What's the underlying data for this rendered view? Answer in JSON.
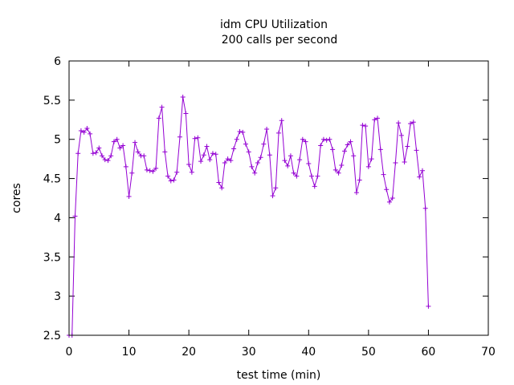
{
  "chart_data": {
    "type": "line",
    "title": "idm CPU Utilization",
    "subtitle": "200 calls per second",
    "xlabel": "test time (min)",
    "ylabel": "cores",
    "xlim": [
      0,
      70
    ],
    "ylim": [
      2.5,
      6
    ],
    "x_ticks": [
      "0",
      "10",
      "20",
      "30",
      "40",
      "50",
      "60",
      "70"
    ],
    "y_ticks": [
      "2.5",
      "3",
      "3.5",
      "4",
      "4.5",
      "5",
      "5.5",
      "6"
    ],
    "grid": false,
    "series_color": "#9400d3",
    "series": [
      {
        "name": "idm CPU",
        "points": [
          [
            0.0,
            2.5
          ],
          [
            0.5,
            2.5
          ],
          [
            1.0,
            4.02
          ],
          [
            1.5,
            4.82
          ],
          [
            2.0,
            5.11
          ],
          [
            2.5,
            5.09
          ],
          [
            3.0,
            5.14
          ],
          [
            3.5,
            5.07
          ],
          [
            4.0,
            4.82
          ],
          [
            4.5,
            4.83
          ],
          [
            5.0,
            4.89
          ],
          [
            5.5,
            4.79
          ],
          [
            6.0,
            4.74
          ],
          [
            6.5,
            4.73
          ],
          [
            7.0,
            4.79
          ],
          [
            7.5,
            4.97
          ],
          [
            8.0,
            5.0
          ],
          [
            8.5,
            4.89
          ],
          [
            9.0,
            4.92
          ],
          [
            9.5,
            4.65
          ],
          [
            10.0,
            4.27
          ],
          [
            10.5,
            4.57
          ],
          [
            11.0,
            4.96
          ],
          [
            11.5,
            4.84
          ],
          [
            12.0,
            4.79
          ],
          [
            12.5,
            4.79
          ],
          [
            13.0,
            4.61
          ],
          [
            13.5,
            4.6
          ],
          [
            14.0,
            4.59
          ],
          [
            14.5,
            4.63
          ],
          [
            15.0,
            5.27
          ],
          [
            15.5,
            5.41
          ],
          [
            16.0,
            4.84
          ],
          [
            16.5,
            4.53
          ],
          [
            17.0,
            4.47
          ],
          [
            17.5,
            4.48
          ],
          [
            18.0,
            4.58
          ],
          [
            18.5,
            5.03
          ],
          [
            19.0,
            5.54
          ],
          [
            19.5,
            5.33
          ],
          [
            20.0,
            4.68
          ],
          [
            20.5,
            4.58
          ],
          [
            21.0,
            5.01
          ],
          [
            21.5,
            5.02
          ],
          [
            22.0,
            4.72
          ],
          [
            22.5,
            4.8
          ],
          [
            23.0,
            4.91
          ],
          [
            23.5,
            4.74
          ],
          [
            24.0,
            4.82
          ],
          [
            24.5,
            4.81
          ],
          [
            25.0,
            4.45
          ],
          [
            25.5,
            4.38
          ],
          [
            26.0,
            4.7
          ],
          [
            26.5,
            4.75
          ],
          [
            27.0,
            4.73
          ],
          [
            27.5,
            4.88
          ],
          [
            28.0,
            5.0
          ],
          [
            28.5,
            5.1
          ],
          [
            29.0,
            5.09
          ],
          [
            29.5,
            4.94
          ],
          [
            30.0,
            4.84
          ],
          [
            30.5,
            4.65
          ],
          [
            31.0,
            4.57
          ],
          [
            31.5,
            4.7
          ],
          [
            32.0,
            4.77
          ],
          [
            32.5,
            4.94
          ],
          [
            33.0,
            5.13
          ],
          [
            33.5,
            4.8
          ],
          [
            34.0,
            4.28
          ],
          [
            34.5,
            4.38
          ],
          [
            35.0,
            5.08
          ],
          [
            35.5,
            5.24
          ],
          [
            36.0,
            4.73
          ],
          [
            36.5,
            4.66
          ],
          [
            37.0,
            4.79
          ],
          [
            37.5,
            4.57
          ],
          [
            38.0,
            4.53
          ],
          [
            38.5,
            4.74
          ],
          [
            39.0,
            5.0
          ],
          [
            39.5,
            4.97
          ],
          [
            40.0,
            4.69
          ],
          [
            40.5,
            4.53
          ],
          [
            41.0,
            4.4
          ],
          [
            41.5,
            4.53
          ],
          [
            42.0,
            4.92
          ],
          [
            42.5,
            5.0
          ],
          [
            43.0,
            4.99
          ],
          [
            43.5,
            5.0
          ],
          [
            44.0,
            4.87
          ],
          [
            44.5,
            4.61
          ],
          [
            45.0,
            4.57
          ],
          [
            45.5,
            4.67
          ],
          [
            46.0,
            4.85
          ],
          [
            46.5,
            4.93
          ],
          [
            47.0,
            4.97
          ],
          [
            47.5,
            4.79
          ],
          [
            48.0,
            4.32
          ],
          [
            48.5,
            4.48
          ],
          [
            49.0,
            5.18
          ],
          [
            49.5,
            5.17
          ],
          [
            50.0,
            4.65
          ],
          [
            50.5,
            4.75
          ],
          [
            51.0,
            5.25
          ],
          [
            51.5,
            5.27
          ],
          [
            52.0,
            4.87
          ],
          [
            52.5,
            4.55
          ],
          [
            53.0,
            4.36
          ],
          [
            53.5,
            4.2
          ],
          [
            54.0,
            4.25
          ],
          [
            54.5,
            4.7
          ],
          [
            55.0,
            5.21
          ],
          [
            55.5,
            5.05
          ],
          [
            56.0,
            4.71
          ],
          [
            56.5,
            4.91
          ],
          [
            57.0,
            5.2
          ],
          [
            57.5,
            5.22
          ],
          [
            58.0,
            4.86
          ],
          [
            58.5,
            4.52
          ],
          [
            59.0,
            4.6
          ],
          [
            59.5,
            4.12
          ],
          [
            60.0,
            2.87
          ]
        ]
      }
    ]
  }
}
